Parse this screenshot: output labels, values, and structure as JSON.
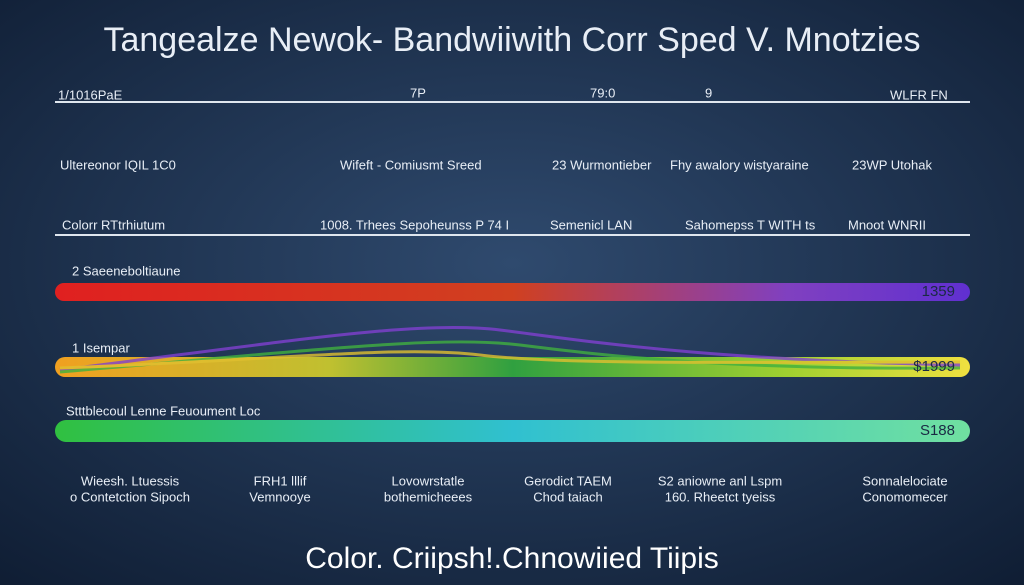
{
  "header": {
    "title": "Tangealze Newok- Bandwiiwith Corr  Sped  V. Mnotzies"
  },
  "scale": {
    "labels": [
      "1/1016PaE",
      "7P",
      "79:0",
      "9",
      "WLFR FN"
    ]
  },
  "row1": {
    "labels": [
      "Ultereonor IQIL 1C0",
      "Wifeft - Comiusmt Sreed",
      "23 Wurmontieber",
      "Fhy awalory wistyaraine",
      "23WP Utohak"
    ]
  },
  "row2": {
    "labels": [
      "Colorr RTtrhiutum",
      "1008. Trhees Sepoheunss P 74 I",
      "Semenicl LAN",
      "Sahomepss T WITH ts",
      "Mnoot WNRII"
    ]
  },
  "bands": [
    {
      "label": "2 Saeeneboltiaune",
      "end_label": "1359"
    },
    {
      "label": "1 Isempar",
      "end_label": "$1999"
    },
    {
      "label": "Stttblecoul Lenne Feuoument Loc",
      "end_label": "S188"
    }
  ],
  "columns": [
    [
      "Wieesh. Ltuessis",
      "o Contetction Sipoch"
    ],
    [
      "FRH1 lllif",
      "Vemnooye"
    ],
    [
      "Lovowrstatle",
      "bothemicheees"
    ],
    [
      "Gerodict TAEM",
      "Chod taiach"
    ],
    [
      "S2 aniowne anl Lspm",
      "160. Rheetct tyeiss"
    ],
    [
      "Sonnalelociate",
      "Conomomecer"
    ]
  ],
  "footer": {
    "text": "Color. Criipsh!.Chnowiied Tiipis"
  }
}
